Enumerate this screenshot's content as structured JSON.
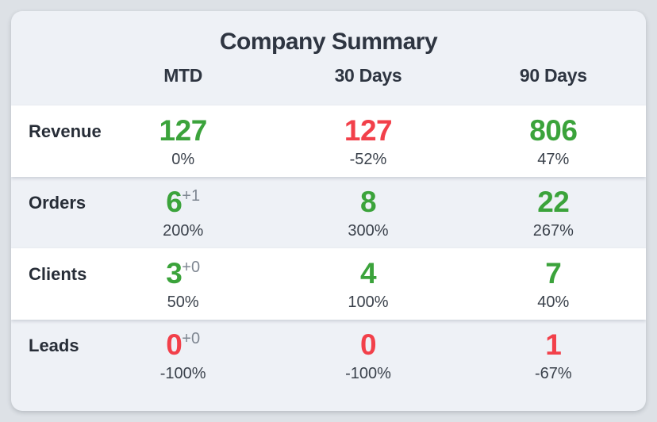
{
  "title": "Company Summary",
  "colors": {
    "positive": "#3ba33b",
    "negative": "#f2404a",
    "text_dark": "#2e3541",
    "delta_gray": "#7f8792",
    "card_bg": "#eef1f6",
    "page_bg": "#dde1e6",
    "row_white": "#ffffff"
  },
  "table": {
    "columns": [
      "MTD",
      "30 Days",
      "90 Days"
    ],
    "rows": [
      {
        "label": "Revenue",
        "cells": [
          {
            "value": "127",
            "trend": "up",
            "pct": "0%"
          },
          {
            "value": "127",
            "trend": "down",
            "pct": "-52%"
          },
          {
            "value": "806",
            "trend": "up",
            "pct": "47%"
          }
        ]
      },
      {
        "label": "Orders",
        "cells": [
          {
            "value": "6",
            "delta": "+1",
            "trend": "up",
            "pct": "200%"
          },
          {
            "value": "8",
            "trend": "up",
            "pct": "300%"
          },
          {
            "value": "22",
            "trend": "up",
            "pct": "267%"
          }
        ]
      },
      {
        "label": "Clients",
        "cells": [
          {
            "value": "3",
            "delta": "+0",
            "trend": "up",
            "pct": "50%"
          },
          {
            "value": "4",
            "trend": "up",
            "pct": "100%"
          },
          {
            "value": "7",
            "trend": "up",
            "pct": "40%"
          }
        ]
      },
      {
        "label": "Leads",
        "cells": [
          {
            "value": "0",
            "delta": "+0",
            "trend": "down",
            "pct": "-100%"
          },
          {
            "value": "0",
            "trend": "down",
            "pct": "-100%"
          },
          {
            "value": "1",
            "trend": "down",
            "pct": "-67%"
          }
        ]
      }
    ]
  }
}
